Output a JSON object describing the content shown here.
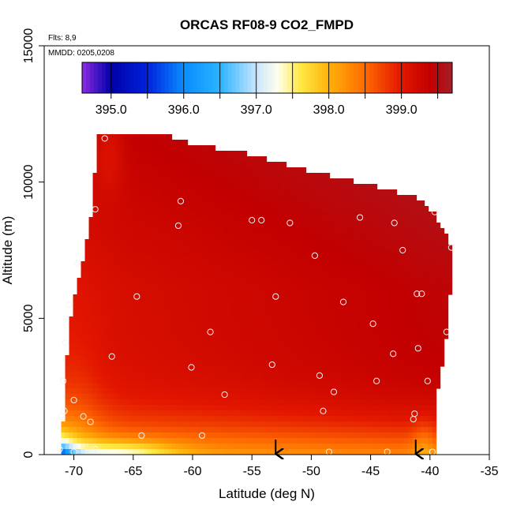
{
  "chart_data": {
    "type": "heatmap",
    "title": "ORCAS RF08-9 CO2_FMPD",
    "annotations": [
      "Flts: 8,9",
      "MMDD: 0205,0208"
    ],
    "xlabel": "Latitude (deg N)",
    "ylabel": "Altitude (m)",
    "xlim": [
      -72.5,
      -35
    ],
    "ylim": [
      0,
      15000
    ],
    "x_ticks": [
      -70,
      -65,
      -60,
      -55,
      -50,
      -45,
      -40,
      -35
    ],
    "x_tick_labels": [
      "-70",
      "-65",
      "-60",
      "-55",
      "-50",
      "-45",
      "-40",
      "-35"
    ],
    "y_ticks": [
      0,
      5000,
      10000,
      15000
    ],
    "y_tick_labels": [
      "0",
      "5000",
      "10000",
      "15000"
    ],
    "colorbar": {
      "range": [
        394.6,
        399.7
      ],
      "ticks": [
        395.0,
        396.0,
        397.0,
        398.0,
        399.0
      ],
      "tick_labels": [
        "395.0",
        "396.0",
        "397.0",
        "398.0",
        "399.0"
      ],
      "stops": [
        {
          "v": 394.6,
          "c": "#8b2be2"
        },
        {
          "v": 395.0,
          "c": "#0000a8"
        },
        {
          "v": 395.5,
          "c": "#0022dd"
        },
        {
          "v": 396.0,
          "c": "#0a8cff"
        },
        {
          "v": 396.5,
          "c": "#2ab4ff"
        },
        {
          "v": 397.0,
          "c": "#c8e6ff"
        },
        {
          "v": 397.3,
          "c": "#ffffea"
        },
        {
          "v": 397.6,
          "c": "#ffe948"
        },
        {
          "v": 398.0,
          "c": "#ffb20a"
        },
        {
          "v": 398.5,
          "c": "#ff6a00"
        },
        {
          "v": 399.0,
          "c": "#e31700"
        },
        {
          "v": 399.4,
          "c": "#c20000"
        },
        {
          "v": 399.7,
          "c": "#a41e28"
        }
      ]
    },
    "data_region": {
      "bottom_left_lat": -71.2,
      "bottom_right_lat": -39.6,
      "top_boundary": [
        [
          -71.0,
          0
        ],
        [
          -70.8,
          2500
        ],
        [
          -70.3,
          5000
        ],
        [
          -69.3,
          7000
        ],
        [
          -68.5,
          9000
        ],
        [
          -68.0,
          11700
        ],
        [
          -63.0,
          11800
        ],
        [
          -60.0,
          11400
        ],
        [
          -55.0,
          11000
        ],
        [
          -50.0,
          10400
        ],
        [
          -45.0,
          9900
        ],
        [
          -41.0,
          9400
        ],
        [
          -39.6,
          8800
        ],
        [
          -38.1,
          7600
        ],
        [
          -38.3,
          6000
        ]
      ],
      "right_boundary": [
        [
          -38.3,
          6000
        ],
        [
          -38.5,
          4600
        ],
        [
          -39.3,
          2500
        ],
        [
          -39.6,
          0
        ]
      ]
    },
    "sample_points": [
      [
        -67.4,
        11600
      ],
      [
        -68.2,
        9000
      ],
      [
        -61.0,
        9300
      ],
      [
        -61.2,
        8400
      ],
      [
        -55.0,
        8600
      ],
      [
        -54.2,
        8600
      ],
      [
        -51.8,
        8500
      ],
      [
        -49.7,
        7300
      ],
      [
        -45.9,
        8700
      ],
      [
        -43.0,
        8500
      ],
      [
        -42.3,
        7500
      ],
      [
        -39.6,
        8900
      ],
      [
        -38.2,
        7600
      ],
      [
        -69.7,
        7000
      ],
      [
        -64.7,
        5800
      ],
      [
        -53.0,
        5800
      ],
      [
        -47.3,
        5600
      ],
      [
        -41.1,
        5900
      ],
      [
        -40.7,
        5900
      ],
      [
        -70.4,
        5500
      ],
      [
        -58.5,
        4500
      ],
      [
        -44.8,
        4800
      ],
      [
        -38.6,
        4500
      ],
      [
        -70.7,
        4100
      ],
      [
        -66.8,
        3600
      ],
      [
        -60.1,
        3200
      ],
      [
        -53.3,
        3300
      ],
      [
        -43.1,
        3700
      ],
      [
        -41.0,
        3900
      ],
      [
        -70.9,
        2700
      ],
      [
        -49.3,
        2900
      ],
      [
        -44.5,
        2700
      ],
      [
        -40.2,
        2700
      ],
      [
        -57.3,
        2200
      ],
      [
        -48.1,
        2300
      ],
      [
        -70.0,
        2000
      ],
      [
        -69.2,
        1400
      ],
      [
        -71.1,
        1400
      ],
      [
        -70.8,
        1600
      ],
      [
        -49.0,
        1600
      ],
      [
        -41.3,
        1500
      ],
      [
        -41.4,
        1300
      ],
      [
        -68.6,
        1200
      ],
      [
        -64.3,
        700
      ],
      [
        -59.2,
        700
      ],
      [
        -71.2,
        200
      ],
      [
        -70.0,
        100
      ],
      [
        -68.2,
        200
      ],
      [
        -48.5,
        100
      ],
      [
        -43.6,
        100
      ],
      [
        -39.8,
        100
      ]
    ],
    "arrows_lat": [
      -53.0,
      -41.2
    ]
  }
}
